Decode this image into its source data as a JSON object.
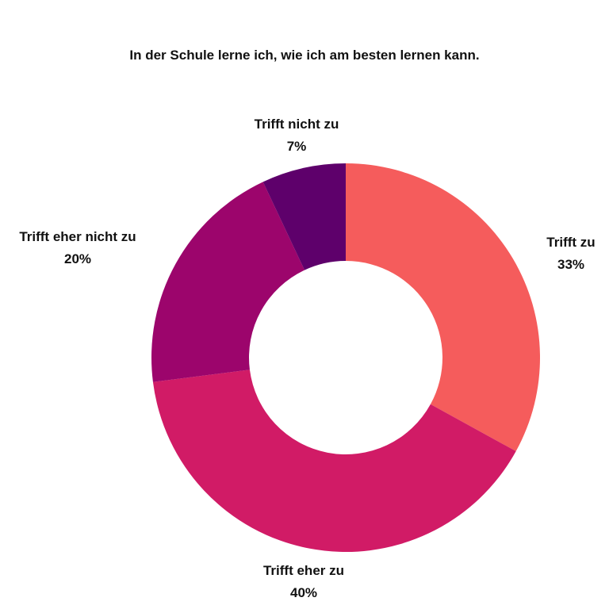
{
  "chart_data": {
    "type": "pie",
    "title": "In der Schule lerne ich, wie ich am besten lernen kann.",
    "donut": true,
    "slices": [
      {
        "label": "Trifft zu",
        "value": 33,
        "value_label": "33%",
        "color": "#f55c5c"
      },
      {
        "label": "Trifft eher zu",
        "value": 40,
        "value_label": "40%",
        "color": "#d11b66"
      },
      {
        "label": "Trifft eher nicht zu",
        "value": 20,
        "value_label": "20%",
        "color": "#9c056c"
      },
      {
        "label": "Trifft nicht zu",
        "value": 7,
        "value_label": "7%",
        "color": "#5e006b"
      }
    ]
  }
}
